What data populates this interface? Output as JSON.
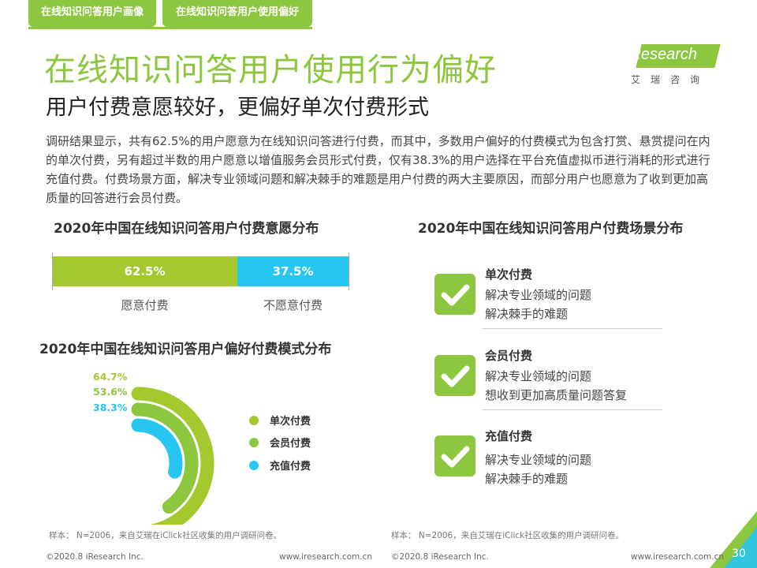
{
  "tabs": [
    "在线知识问答用户画像",
    "在线知识问答用户使用偏好"
  ],
  "title": "在线知识问答用户使用行为偏好",
  "subtitle": "用户付费意愿较好，更偏好单次付费形式",
  "logo": {
    "brand": "iResearch",
    "cn": "艾瑞咨询"
  },
  "intro": "调研结果显示，共有62.5%的用户愿意为在线知识问答进行付费，而其中，多数用户偏好的付费模式为包含打赏、悬赏提问在内的单次付费，另有超过半数的用户愿意以增值服务会员形式付费，仅有38.3%的用户选择在平台充值虚拟币进行消耗的形式进行充值付费。付费场景方面，解决专业领域问题和解决棘手的难题是用户付费的两大主要原因，而部分用户也愿意为了收到更加高质量的回答进行会员付费。",
  "colors": {
    "green": "#8dc63f",
    "lime": "#a5c82e",
    "cyan": "#26c6f0"
  },
  "chart_data": [
    {
      "type": "bar",
      "title": "2020年中国在线知识问答用户付费意愿分布",
      "stacked": true,
      "series": [
        {
          "name": "愿意付费",
          "value": 62.5,
          "label": "62.5%",
          "color": "#a5c82e"
        },
        {
          "name": "不愿意付费",
          "value": 37.5,
          "label": "37.5%",
          "color": "#26c6f0"
        }
      ]
    },
    {
      "type": "radial-bar",
      "title": "2020年中国在线知识问答用户偏好付费模式分布",
      "categories": [
        "单次付费",
        "会员付费",
        "充值付费"
      ],
      "values": [
        64.7,
        53.6,
        38.3
      ],
      "labels": [
        "64.7%",
        "53.6%",
        "38.3%"
      ],
      "colors": [
        "#a5c82e",
        "#8dc63f",
        "#26c6f0"
      ],
      "legend": "right"
    },
    {
      "type": "table",
      "title": "2020年中国在线知识问答用户付费场景分布",
      "rows": [
        {
          "name": "单次付费",
          "reasons": [
            "解决专业领域的问题",
            "解决棘手的难题"
          ]
        },
        {
          "name": "会员付费",
          "reasons": [
            "解决专业领域的问题",
            "想收到更加高质量问题答复"
          ]
        },
        {
          "name": "充值付费",
          "reasons": [
            "解决专业领域的问题",
            "解决棘手的难题"
          ]
        }
      ]
    }
  ],
  "notes": [
    "样本： N=2006，来自艾瑞在iClick社区收集的用户调研问卷。",
    "样本： N=2006，来自艾瑞在iClick社区收集的用户调研问卷。"
  ],
  "footer": {
    "copyright": "©2020.8 iResearch Inc.",
    "url": "www.iresearch.com.cn",
    "page": "30"
  }
}
